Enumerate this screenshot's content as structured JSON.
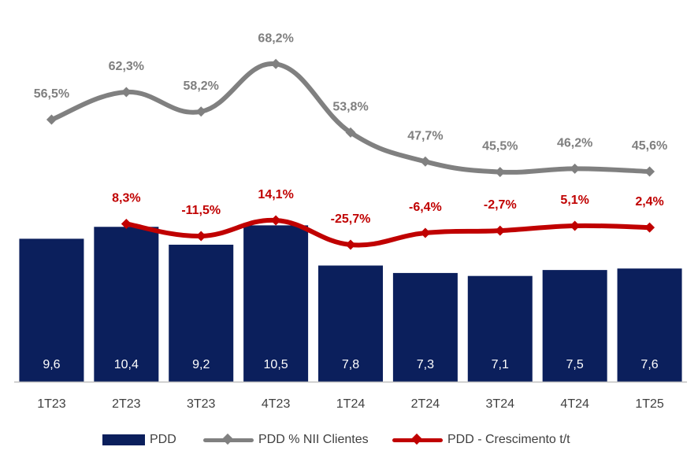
{
  "chart_data": {
    "type": "bar",
    "categories": [
      "1T23",
      "2T23",
      "3T23",
      "4T23",
      "1T24",
      "2T24",
      "3T24",
      "4T24",
      "1T25"
    ],
    "series": [
      {
        "name": "PDD",
        "type": "bar",
        "values": [
          9.6,
          10.4,
          9.2,
          10.5,
          7.8,
          7.3,
          7.1,
          7.5,
          7.6
        ],
        "labels": [
          "9,6",
          "10,4",
          "9,2",
          "10,5",
          "7,8",
          "7,3",
          "7,1",
          "7,5",
          "7,6"
        ],
        "color": "#0b1f5c"
      },
      {
        "name": "PDD % NII Clientes",
        "type": "line",
        "values": [
          56.5,
          62.3,
          58.2,
          68.2,
          53.8,
          47.7,
          45.5,
          46.2,
          45.6
        ],
        "labels": [
          "56,5%",
          "62,3%",
          "58,2%",
          "68,2%",
          "53,8%",
          "47,7%",
          "45,5%",
          "46,2%",
          "45,6%"
        ],
        "color": "#808080",
        "label_color": "#7f7f7f"
      },
      {
        "name": "PDD - Crescimento t/t",
        "type": "line",
        "values": [
          null,
          8.3,
          -11.5,
          14.1,
          -25.7,
          -6.4,
          -2.7,
          5.1,
          2.4
        ],
        "labels": [
          "",
          "8,3%",
          "-11,5%",
          "14,1%",
          "-25,7%",
          "-6,4%",
          "-2,7%",
          "5,1%",
          "2,4%"
        ],
        "color": "#c00000",
        "label_color": "#c00000"
      }
    ],
    "title": "",
    "xlabel": "",
    "ylabel": "",
    "grid": false,
    "legend_position": "bottom",
    "axis_color": "#bfbfbf",
    "tick_label_color": "#404040",
    "bar_label_color": "#ffffff"
  }
}
